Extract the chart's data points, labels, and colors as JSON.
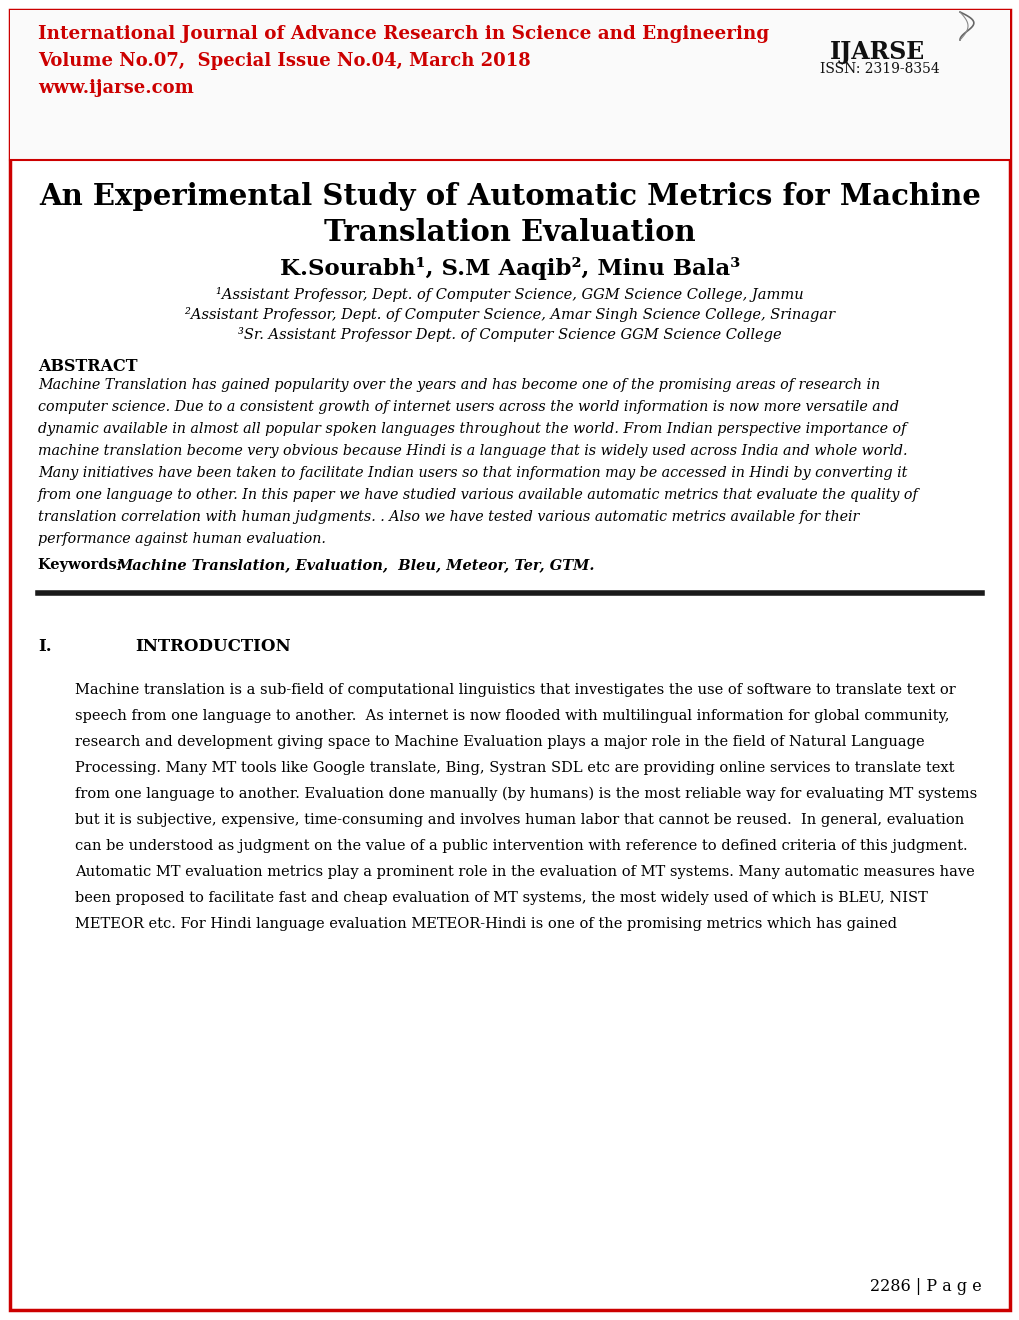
{
  "bg_color": "#ffffff",
  "border_color": "#cc0000",
  "header_line1": "International Journal of Advance Research in Science and Engineering",
  "header_line2": "Volume No.07,  Special Issue No.04, March 2018",
  "header_line3": "www.ijarse.com",
  "header_logo_text": "IJARSE",
  "header_issn": "ISSN: 2319-8354",
  "header_color": "#cc0000",
  "title_line1": "An Experimental Study of Automatic Metrics for Machine",
  "title_line2": "Translation Evaluation",
  "authors": "K.Sourabh¹, S.M Aaqib², Minu Bala³",
  "affil1": "¹Assistant Professor, Dept. of Computer Science, GGM Science College, Jammu",
  "affil2": "²Assistant Professor, Dept. of Computer Science, Amar Singh Science College, Srinagar",
  "affil3": "³Sr. Assistant Professor Dept. of Computer Science GGM Science College",
  "abstract_title": "ABSTRACT",
  "keywords_label": "Keywords: ",
  "keywords_text": "Machine Translation, Evaluation,  Bleu, Meteor, Ter, GTM.",
  "section_num": "I.",
  "section_title": "INTRODUCTION",
  "page_number": "2286 | P a g e",
  "abstract_lines": [
    "Machine Translation has gained popularity over the years and has become one of the promising areas of research in",
    "computer science. Due to a consistent growth of internet users across the world information is now more versatile and",
    "dynamic available in almost all popular spoken languages throughout the world. From Indian perspective importance of",
    "machine translation become very obvious because Hindi is a language that is widely used across India and whole world.",
    "Many initiatives have been taken to facilitate Indian users so that information may be accessed in Hindi by converting it",
    "from one language to other. In this paper we have studied various available automatic metrics that evaluate the quality of",
    "translation correlation with human judgments. . Also we have tested various automatic metrics available for their",
    "performance against human evaluation."
  ],
  "intro_lines": [
    "Machine translation is a sub-field of computational linguistics that investigates the use of software to translate text or",
    "speech from one language to another.  As internet is now flooded with multilingual information for global community,",
    "research and development giving space to Machine Evaluation plays a major role in the field of Natural Language",
    "Processing. Many MT tools like Google translate, Bing, Systran SDL etc are providing online services to translate text",
    "from one language to another. Evaluation done manually (by humans) is the most reliable way for evaluating MT systems",
    "but it is subjective, expensive, time-consuming and involves human labor that cannot be reused.  In general, evaluation",
    "can be understood as judgment on the value of a public intervention with reference to defined criteria of this judgment.",
    "Automatic MT evaluation metrics play a prominent role in the evaluation of MT systems. Many automatic measures have",
    "been proposed to facilitate fast and cheap evaluation of MT systems, the most widely used of which is BLEU, NIST",
    "METEOR etc. For Hindi language evaluation METEOR-Hindi is one of the promising metrics which has gained"
  ]
}
